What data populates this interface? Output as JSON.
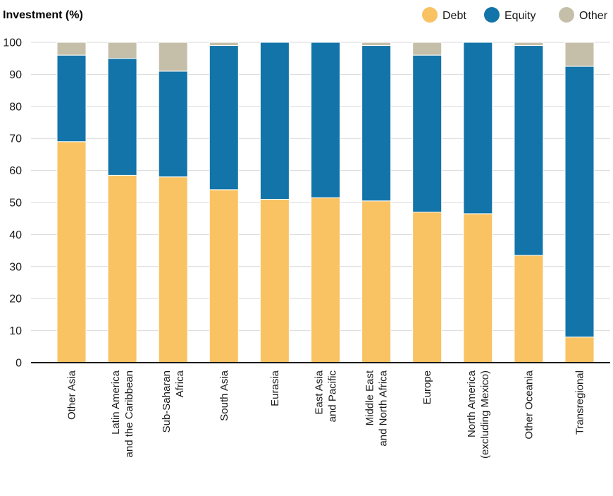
{
  "chart_data": {
    "type": "bar",
    "stacked": true,
    "ylabel": "Investment (%)",
    "ylim": [
      0,
      100
    ],
    "yticks": [
      0,
      10,
      20,
      30,
      40,
      50,
      60,
      70,
      80,
      90,
      100
    ],
    "grid": true,
    "legend_position": "top-right",
    "categories": [
      [
        "Other Asia"
      ],
      [
        "Latin America",
        "and the Caribbean"
      ],
      [
        "Sub-Saharan",
        "Africa"
      ],
      [
        "South Asia"
      ],
      [
        "Eurasia"
      ],
      [
        "East Asia",
        "and Pacific"
      ],
      [
        "Middle East",
        "and North Africa"
      ],
      [
        "Europe"
      ],
      [
        "North America",
        "(excluding Mexico)"
      ],
      [
        "Other Oceania"
      ],
      [
        "Transregional"
      ]
    ],
    "series": [
      {
        "name": "Debt",
        "color": "#F9C262",
        "values": [
          69,
          58.5,
          58,
          54,
          51,
          51.5,
          50.5,
          47,
          46.5,
          33.5,
          8
        ]
      },
      {
        "name": "Equity",
        "color": "#1274A8",
        "values": [
          27,
          36.5,
          33,
          45,
          49,
          48.5,
          48.5,
          49,
          53.5,
          65.5,
          84.5
        ]
      },
      {
        "name": "Other",
        "color": "#C5BFAA",
        "values": [
          4,
          5,
          9,
          1,
          0,
          0,
          1,
          4,
          0,
          1,
          7.5
        ]
      }
    ]
  }
}
